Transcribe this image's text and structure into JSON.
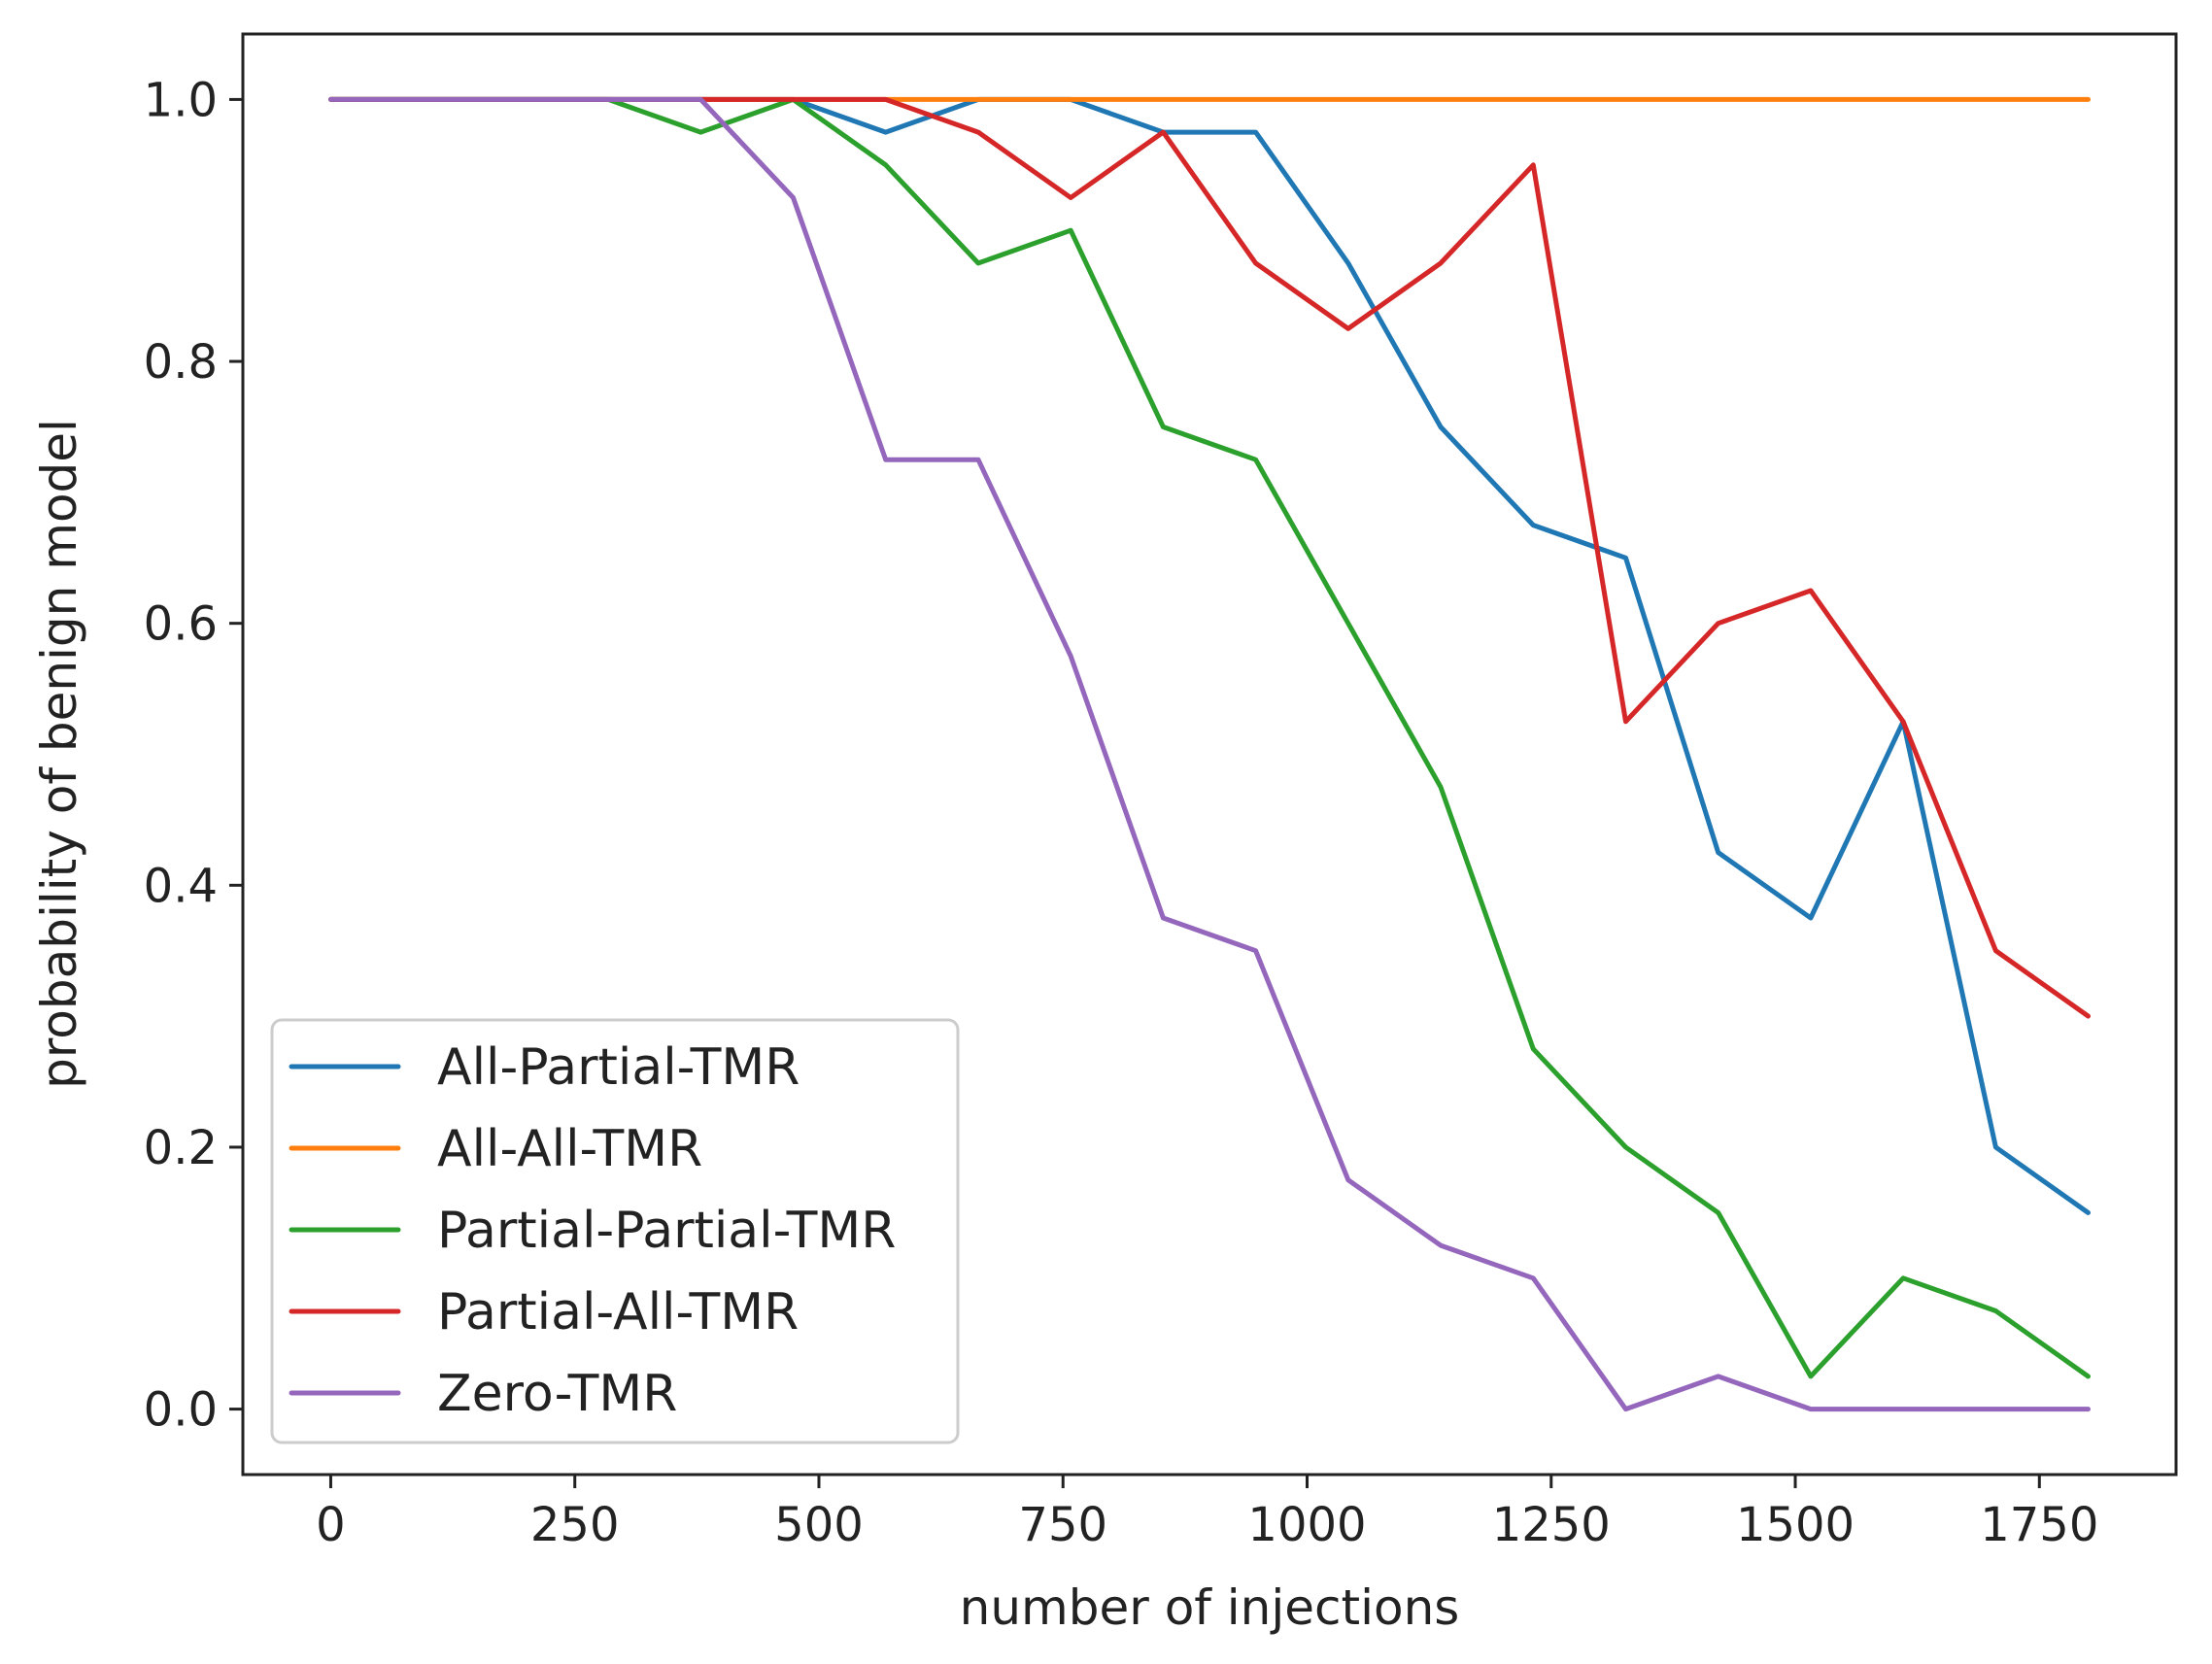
{
  "chart_data": {
    "type": "line",
    "title": "",
    "xlabel": "number of injections",
    "ylabel": "probability of benign model",
    "xlim": [
      -90,
      1890
    ],
    "ylim": [
      -0.05,
      1.05
    ],
    "xticks": [
      0,
      250,
      500,
      750,
      1000,
      1250,
      1500,
      1750
    ],
    "yticks": [
      0.0,
      0.2,
      0.4,
      0.6,
      0.8,
      1.0
    ],
    "xtick_labels": [
      "0",
      "250",
      "500",
      "750",
      "1000",
      "1250",
      "1500",
      "1750"
    ],
    "ytick_labels": [
      "0.0",
      "0.2",
      "0.4",
      "0.6",
      "0.8",
      "1.0"
    ],
    "grid": false,
    "legend_position": "bottom-left",
    "x": [
      0,
      94.7,
      189.5,
      284.2,
      378.9,
      473.7,
      568.4,
      663.2,
      757.9,
      852.6,
      947.4,
      1042.1,
      1136.8,
      1231.6,
      1326.3,
      1421.1,
      1515.8,
      1610.5,
      1705.3,
      1800
    ],
    "series": [
      {
        "name": "All-Partial-TMR",
        "color": "#1f77b4",
        "values": [
          1.0,
          1.0,
          1.0,
          1.0,
          1.0,
          1.0,
          0.975,
          1.0,
          1.0,
          0.975,
          0.975,
          0.875,
          0.75,
          0.675,
          0.65,
          0.425,
          0.375,
          0.525,
          0.2,
          0.15
        ]
      },
      {
        "name": "All-All-TMR",
        "color": "#ff7f0e",
        "values": [
          1.0,
          1.0,
          1.0,
          1.0,
          1.0,
          1.0,
          1.0,
          1.0,
          1.0,
          1.0,
          1.0,
          1.0,
          1.0,
          1.0,
          1.0,
          1.0,
          1.0,
          1.0,
          1.0,
          1.0
        ]
      },
      {
        "name": "Partial-Partial-TMR",
        "color": "#2ca02c",
        "values": [
          1.0,
          1.0,
          1.0,
          1.0,
          0.975,
          1.0,
          0.95,
          0.875,
          0.9,
          0.75,
          0.725,
          0.6,
          0.475,
          0.275,
          0.2,
          0.15,
          0.025,
          0.1,
          0.075,
          0.025
        ]
      },
      {
        "name": "Partial-All-TMR",
        "color": "#d62728",
        "values": [
          1.0,
          1.0,
          1.0,
          1.0,
          1.0,
          1.0,
          1.0,
          0.975,
          0.925,
          0.975,
          0.875,
          0.825,
          0.875,
          0.95,
          0.525,
          0.6,
          0.625,
          0.525,
          0.35,
          0.3
        ]
      },
      {
        "name": "Zero-TMR",
        "color": "#9467bd",
        "values": [
          1.0,
          1.0,
          1.0,
          1.0,
          1.0,
          0.925,
          0.725,
          0.725,
          0.575,
          0.375,
          0.35,
          0.175,
          0.125,
          0.1,
          0.0,
          0.025,
          0.0,
          0.0,
          0.0,
          0.0
        ]
      }
    ]
  }
}
